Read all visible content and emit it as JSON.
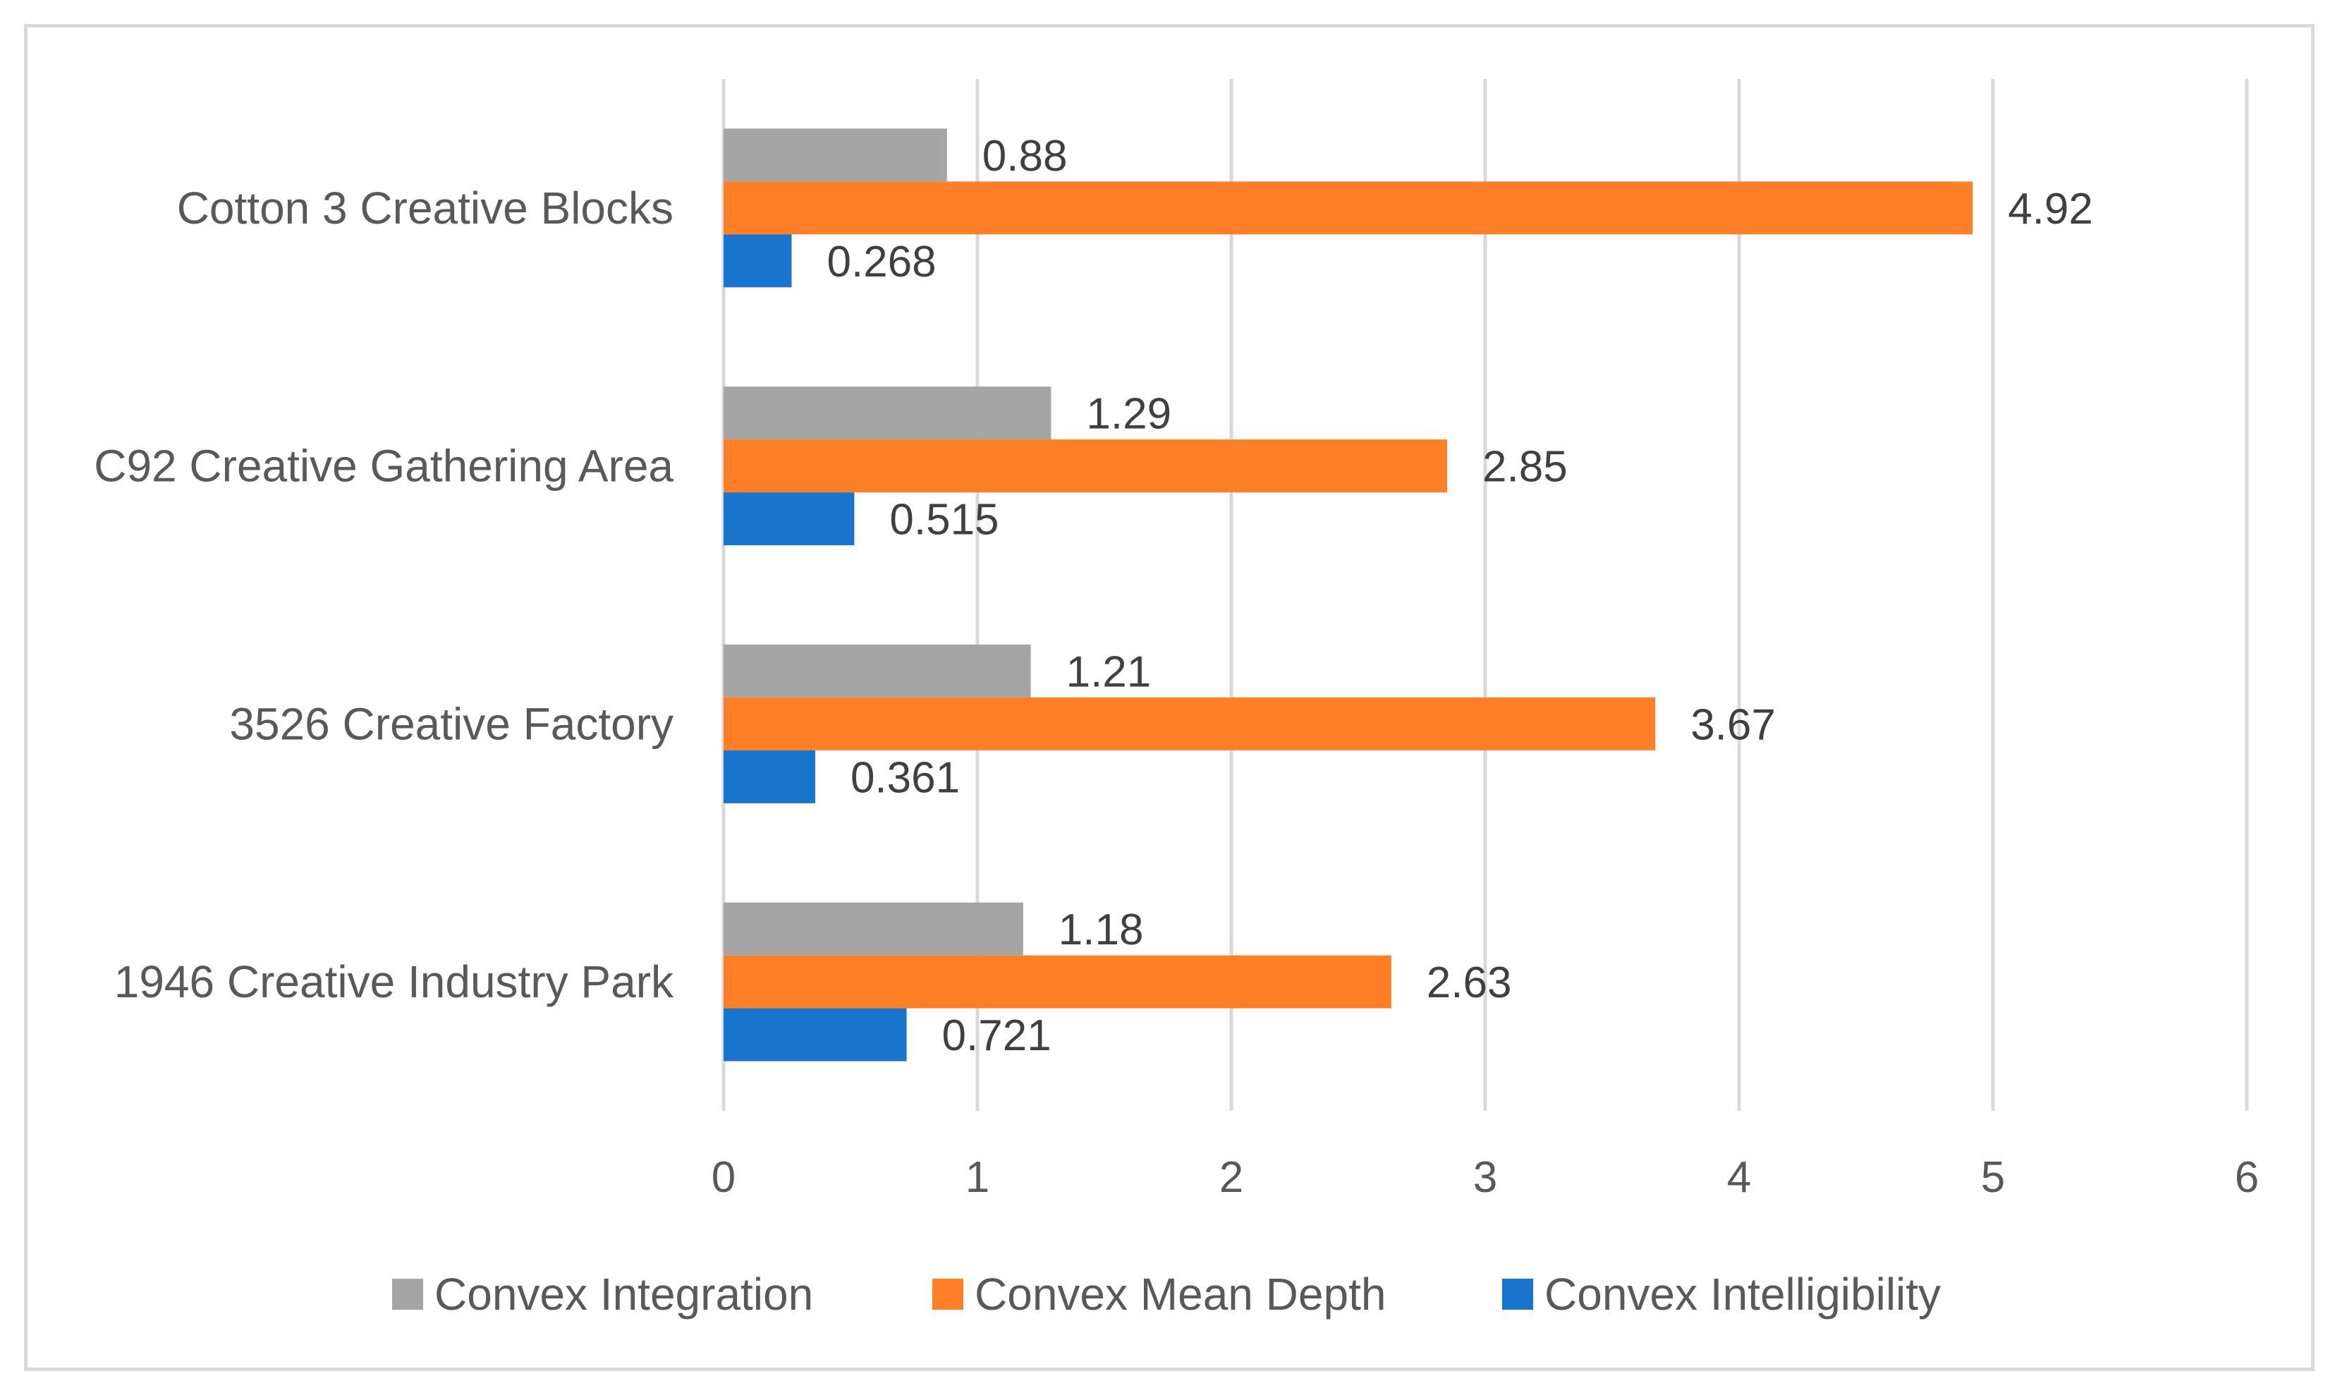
{
  "chart_data": {
    "type": "bar",
    "orientation": "horizontal",
    "categories": [
      "Cotton 3 Creative Blocks",
      "C92 Creative Gathering Area",
      "3526 Creative Factory",
      "1946 Creative Industry Park"
    ],
    "series": [
      {
        "name": "Convex Integration",
        "color": "#a5a5a5",
        "values": [
          0.88,
          1.29,
          1.21,
          1.18
        ],
        "labels": [
          "0.88",
          "1.29",
          "1.21",
          "1.18"
        ]
      },
      {
        "name": "Convex Mean Depth",
        "color": "#ff7f27",
        "values": [
          4.92,
          2.85,
          3.67,
          2.63
        ],
        "labels": [
          "4.92",
          "2.85",
          "3.67",
          "2.63"
        ]
      },
      {
        "name": "Convex Intelligibility",
        "color": "#1874cd",
        "values": [
          0.268,
          0.515,
          0.361,
          0.721
        ],
        "labels": [
          "0.268",
          "0.515",
          "0.361",
          "0.721"
        ]
      }
    ],
    "xlim": [
      0,
      6
    ],
    "x_ticks": [
      "0",
      "1",
      "2",
      "3",
      "4",
      "5",
      "6"
    ],
    "grid": "vertical",
    "gridline_color": "#d9d9d9",
    "legend_position": "bottom",
    "data_labels": true
  }
}
